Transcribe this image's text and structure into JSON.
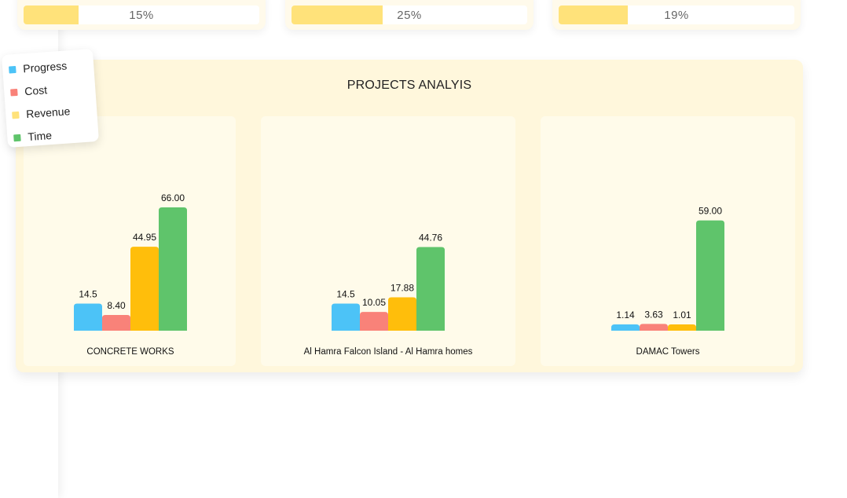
{
  "stats": [
    {
      "label": "15%",
      "fraction": 0.15
    },
    {
      "label": "25%",
      "fraction": 0.25
    },
    {
      "label": "19%",
      "fraction": 0.19
    }
  ],
  "panel": {
    "title": "PROJECTS ANALYIS"
  },
  "legend": [
    {
      "name": "Progress",
      "color": "#4cc3f7"
    },
    {
      "name": "Cost",
      "color": "#f98279"
    },
    {
      "name": "Revenue",
      "color": "#ffe27a"
    },
    {
      "name": "Time",
      "color": "#5fc46b"
    }
  ],
  "chart_data": [
    {
      "type": "bar",
      "project": "CONCRETE WORKS",
      "series": [
        {
          "name": "Progress",
          "value": 14.5,
          "label": "14.5",
          "color": "#4cc3f7"
        },
        {
          "name": "Cost",
          "value": 8.4,
          "label": "8.40",
          "color": "#f98279"
        },
        {
          "name": "Revenue",
          "value": 44.95,
          "label": "44.95",
          "color": "#ffbe0b"
        },
        {
          "name": "Time",
          "value": 66.0,
          "label": "66.00",
          "color": "#5fc46b"
        }
      ]
    },
    {
      "type": "bar",
      "project": "Al Hamra Falcon Island - Al Hamra homes",
      "series": [
        {
          "name": "Progress",
          "value": 14.5,
          "label": "14.5",
          "color": "#4cc3f7"
        },
        {
          "name": "Cost",
          "value": 10.05,
          "label": "10.05",
          "color": "#f98279"
        },
        {
          "name": "Revenue",
          "value": 17.88,
          "label": "17.88",
          "color": "#ffbe0b"
        },
        {
          "name": "Time",
          "value": 44.76,
          "label": "44.76",
          "color": "#5fc46b"
        }
      ]
    },
    {
      "type": "bar",
      "project": "DAMAC Towers",
      "series": [
        {
          "name": "Progress",
          "value": 1.14,
          "label": "1.14",
          "color": "#4cc3f7"
        },
        {
          "name": "Cost",
          "value": 3.63,
          "label": "3.63",
          "color": "#f98279"
        },
        {
          "name": "Revenue",
          "value": 1.01,
          "label": "1.01",
          "color": "#ffbe0b"
        },
        {
          "name": "Time",
          "value": 59.0,
          "label": "59.00",
          "color": "#5fc46b"
        }
      ]
    }
  ]
}
